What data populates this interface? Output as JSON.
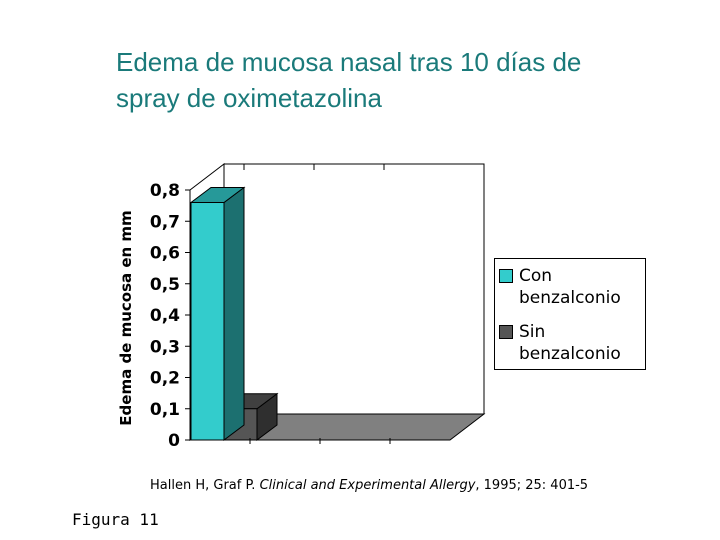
{
  "title_lines": [
    "Edema de mucosa nasal tras 10 días de",
    "spray de oximetazolina"
  ],
  "chart_data": {
    "type": "bar",
    "categories": [
      ""
    ],
    "series": [
      {
        "name": "Con benzalconio",
        "values": [
          0.76
        ],
        "color": "#33cccc"
      },
      {
        "name": "Sin benzalconio",
        "values": [
          0.1
        ],
        "color": "#555555"
      }
    ],
    "ylabel": "Edema de mucosa en mm",
    "ylim": [
      0,
      0.8
    ],
    "yticks": [
      "0",
      "0,1",
      "0,2",
      "0,3",
      "0,4",
      "0,5",
      "0,6",
      "0,7",
      "0,8"
    ],
    "legend_position": "right",
    "grid": false,
    "is_3d": true
  },
  "legend": {
    "items": [
      {
        "label": "Con benzalconio",
        "color": "#33cccc"
      },
      {
        "label": "Sin benzalconio",
        "color": "#555555"
      }
    ]
  },
  "citation": {
    "authors": "Hallen H, Graf P. ",
    "journal": "Clinical and Experimental Allergy",
    "details": ", 1995; 25: 401-5"
  },
  "figure_label": "Figura 11"
}
